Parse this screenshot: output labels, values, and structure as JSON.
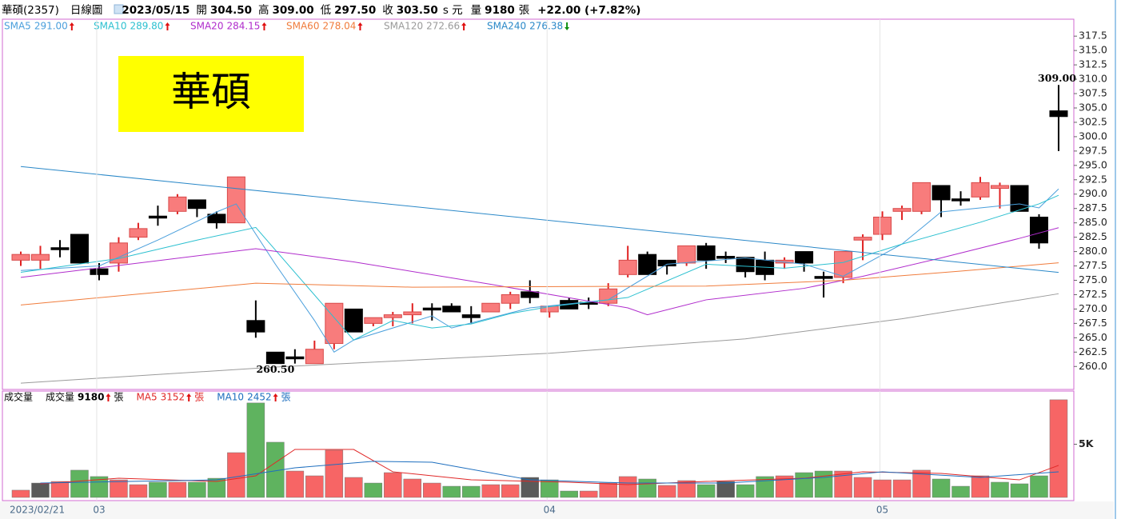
{
  "header": {
    "name": "華碩(2357)",
    "period": "日線圖",
    "date": "2023/05/15",
    "open_label": "開",
    "open": "304.50",
    "high_label": "高",
    "high": "309.00",
    "low_label": "低",
    "low": "297.50",
    "close_label": "收",
    "close": "303.50",
    "currency": "s 元",
    "volume_label": "量",
    "volume": "9180",
    "volume_unit": "張",
    "change": "+22.00 (+7.82%)"
  },
  "banner": "華碩",
  "chart_data": [
    {
      "type": "candlestick",
      "open": [
        278.5,
        278.5,
        280.5,
        283,
        277,
        278,
        282.5,
        286,
        287,
        289,
        286.5,
        285,
        268,
        262.5,
        261.5,
        260.5,
        264,
        270,
        267.5,
        268.5,
        269,
        270,
        270.5,
        269,
        269.5,
        271,
        273,
        269.5,
        271.5,
        271,
        271,
        276,
        279.5,
        278.5,
        278,
        281,
        279,
        279,
        278.5,
        278,
        280,
        275.5,
        275.5,
        282,
        283,
        287,
        287,
        291.5,
        289,
        289.5,
        291,
        291.5,
        286,
        304.5
      ],
      "high": [
        280,
        281,
        282,
        283,
        278,
        282.5,
        285,
        288,
        290,
        289,
        287,
        293,
        271.5,
        262.5,
        263,
        264.5,
        271,
        270,
        268.5,
        269.5,
        271,
        271,
        271,
        270.5,
        271,
        273,
        275,
        270.5,
        272,
        272,
        274.5,
        281,
        280,
        278.5,
        281,
        281.5,
        280,
        279,
        280,
        279,
        280,
        276.5,
        280,
        283,
        287,
        288,
        292,
        291.5,
        290.5,
        293,
        292,
        291.5,
        286.5,
        309
      ],
      "low": [
        277.5,
        277,
        279,
        278,
        275,
        276.5,
        282,
        284.5,
        286.5,
        286,
        284,
        285,
        265,
        260.5,
        260.5,
        260.5,
        263,
        266,
        267,
        267,
        267.5,
        268,
        269.5,
        267.5,
        269.5,
        270,
        271,
        268.5,
        270,
        270,
        270.5,
        275.5,
        276,
        276,
        277.5,
        277,
        278,
        275.5,
        275,
        277,
        276.5,
        272,
        274.5,
        278.5,
        282,
        285.5,
        286.5,
        286,
        288,
        289,
        287.5,
        287,
        280.5,
        297.5
      ],
      "close": [
        279.5,
        279.5,
        280.5,
        278,
        276,
        281.5,
        284,
        286,
        289.5,
        287.5,
        285,
        293,
        266,
        260.5,
        261.5,
        263,
        271,
        266,
        268.5,
        269,
        269.5,
        270,
        269.5,
        268.5,
        271,
        272.5,
        272,
        270.5,
        270,
        271,
        273.5,
        278.5,
        276,
        277.5,
        281,
        278.5,
        279,
        276.5,
        276,
        278.5,
        278,
        275.5,
        280,
        282.5,
        286,
        287.5,
        292,
        289,
        289,
        292,
        291.5,
        287,
        281.5,
        303.5
      ],
      "up_color": "#f87c7c",
      "up_edge": "#e02020",
      "down_color": "#000000",
      "ylim": [
        256,
        320.45
      ],
      "yticks": [
        {
          "value": 260,
          "label": "260.0"
        },
        {
          "value": 262.5,
          "label": "262.5"
        },
        {
          "value": 265,
          "label": "265.0"
        },
        {
          "value": 267.5,
          "label": "267.5"
        },
        {
          "value": 270,
          "label": "270.0"
        },
        {
          "value": 272.5,
          "label": "272.5"
        },
        {
          "value": 275,
          "label": "275.0"
        },
        {
          "value": 277.5,
          "label": "277.5"
        },
        {
          "value": 280,
          "label": "280.0"
        },
        {
          "value": 282.5,
          "label": "282.5"
        },
        {
          "value": 285,
          "label": "285.0"
        },
        {
          "value": 287.5,
          "label": "287.5"
        },
        {
          "value": 290,
          "label": "290.0"
        },
        {
          "value": 292.5,
          "label": "292.5"
        },
        {
          "value": 295,
          "label": "295.0"
        },
        {
          "value": 297.5,
          "label": "297.5"
        },
        {
          "value": 300,
          "label": "300.0"
        },
        {
          "value": 302.5,
          "label": "302.5"
        },
        {
          "value": 305,
          "label": "305.0"
        },
        {
          "value": 307.5,
          "label": "307.5"
        },
        {
          "value": 310,
          "label": "310.0"
        },
        {
          "value": 312.5,
          "label": "312.5"
        },
        {
          "value": 315,
          "label": "315.0"
        },
        {
          "value": 317.5,
          "label": "317.5"
        }
      ],
      "annotations": [
        {
          "x": 53,
          "value": 309,
          "label": "309.00"
        },
        {
          "x": 13,
          "value": 260.5,
          "label": "260.50"
        }
      ],
      "series": [
        {
          "name": "SMA5",
          "color": "#4a9fdc",
          "legend_value": {
            "value": 291,
            "label": "291.00"
          },
          "trend": "up",
          "x": [
            0,
            4,
            7,
            10,
            11,
            13,
            15,
            16,
            17,
            21,
            22,
            26,
            30,
            33,
            37,
            40,
            42,
            45,
            47,
            51,
            52,
            53
          ],
          "values": [
            276.7,
            277.5,
            282,
            286.9,
            288.3,
            277.8,
            268,
            262.5,
            264.6,
            268.8,
            266.7,
            270.2,
            271.6,
            277.8,
            278.9,
            277.8,
            275.7,
            281.3,
            286.9,
            288.3,
            287.6,
            290.9
          ]
        },
        {
          "name": "SMA10",
          "color": "#2cc0d0",
          "legend_value": {
            "value": 289.8,
            "label": "289.80"
          },
          "trend": "up",
          "x": [
            0,
            5,
            9,
            12,
            17,
            19,
            21,
            23,
            25,
            27,
            31,
            35,
            39,
            42,
            45,
            49,
            52,
            53
          ],
          "values": [
            276.4,
            278.8,
            282,
            284.2,
            264.6,
            268,
            266.7,
            267.4,
            269.2,
            270.4,
            272,
            277.8,
            277.1,
            278.1,
            281.3,
            285.1,
            288.3,
            289.8
          ]
        },
        {
          "name": "SMA20",
          "color": "#b02ccc",
          "legend_value": {
            "value": 284.15,
            "label": "284.15"
          },
          "trend": "up",
          "x": [
            0,
            12,
            17,
            24,
            31,
            32,
            35,
            40,
            43,
            47,
            51,
            53
          ],
          "values": [
            275.5,
            280.5,
            278.2,
            274.3,
            270.2,
            269,
            271.6,
            273.6,
            275.7,
            278.9,
            282.3,
            284.15
          ]
        },
        {
          "name": "SMA60",
          "color": "#f07c3c",
          "legend_value": {
            "value": 278.04,
            "label": "278.04"
          },
          "trend": "up",
          "x": [
            0,
            12,
            20,
            35,
            42,
            48,
            53
          ],
          "values": [
            270.7,
            274.5,
            273.8,
            274,
            275,
            276.6,
            278.04
          ]
        },
        {
          "name": "SMA120",
          "color": "#9a9a9a",
          "legend_value": {
            "value": 272.66,
            "label": "272.66"
          },
          "trend": "up",
          "x": [
            0,
            13,
            27,
            37,
            45,
            53
          ],
          "values": [
            257.1,
            259.9,
            262.3,
            264.8,
            268.3,
            272.66
          ]
        },
        {
          "name": "SMA240",
          "color": "#2a88c8",
          "legend_value": {
            "value": 276.38,
            "label": "276.38"
          },
          "trend": "down",
          "x": [
            0,
            53
          ],
          "values": [
            294.8,
            276.38
          ]
        }
      ]
    },
    {
      "type": "bar",
      "title": "成交量",
      "name": "成交量",
      "unit": "張",
      "legend_value": {
        "value": 9180,
        "label": "9180"
      },
      "trend": "up",
      "categories": [
        "2023/02/21",
        null,
        null,
        null,
        "03",
        null,
        null,
        null,
        null,
        null,
        null,
        null,
        null,
        null,
        null,
        null,
        null,
        null,
        null,
        null,
        null,
        null,
        null,
        null,
        null,
        null,
        null,
        "04",
        null,
        null,
        null,
        null,
        null,
        null,
        null,
        null,
        null,
        null,
        null,
        null,
        null,
        null,
        null,
        null,
        "05",
        null,
        null,
        null,
        null,
        null,
        null,
        null,
        null,
        null
      ],
      "values": [
        680,
        1350,
        1500,
        2560,
        1960,
        1650,
        1200,
        1430,
        1430,
        1430,
        1800,
        4210,
        8880,
        5190,
        2480,
        2030,
        4440,
        1880,
        1350,
        2330,
        1730,
        1350,
        1050,
        1050,
        1200,
        1200,
        1880,
        1650,
        600,
        600,
        1350,
        1960,
        1730,
        1130,
        1580,
        1200,
        1500,
        1200,
        1960,
        2030,
        2330,
        2480,
        2480,
        1880,
        1650,
        1650,
        2560,
        1730,
        1050,
        2030,
        1430,
        1280,
        2030,
        9180
      ],
      "colors": [
        "#f76565",
        "#5a5a5a",
        "#f76565",
        "#5fb35f",
        "#5fb35f",
        "#f76565",
        "#f76565",
        "#5fb35f",
        "#f76565",
        "#5fb35f",
        "#5fb35f",
        "#f76565",
        "#5fb35f",
        "#5fb35f",
        "#f76565",
        "#f76565",
        "#f76565",
        "#f76565",
        "#5fb35f",
        "#f76565",
        "#f76565",
        "#f76565",
        "#5fb35f",
        "#5fb35f",
        "#f76565",
        "#f76565",
        "#5a5a5a",
        "#5fb35f",
        "#5fb35f",
        "#f76565",
        "#f76565",
        "#f76565",
        "#5fb35f",
        "#f76565",
        "#f76565",
        "#5fb35f",
        "#5a5a5a",
        "#5fb35f",
        "#5fb35f",
        "#f76565",
        "#5fb35f",
        "#5fb35f",
        "#f76565",
        "#f76565",
        "#f76565",
        "#f76565",
        "#f76565",
        "#5fb35f",
        "#5fb35f",
        "#f76565",
        "#5fb35f",
        "#5fb35f",
        "#5fb35f",
        "#f76565"
      ],
      "ylim": [
        0,
        10000
      ],
      "yticks": [
        {
          "value": 5000,
          "label": "5K"
        }
      ],
      "series": [
        {
          "name": "MA5",
          "color": "#e02828",
          "legend_value": {
            "value": 3152,
            "label": "3152"
          },
          "trend": "up",
          "x": [
            1,
            5,
            10,
            12,
            14,
            17,
            19,
            23,
            28,
            31,
            35,
            40,
            43,
            47,
            51,
            53
          ],
          "values": [
            1280,
            1800,
            1500,
            2030,
            4510,
            4510,
            2410,
            1650,
            1430,
            1200,
            1500,
            1800,
            2410,
            2260,
            1650,
            3010
          ]
        },
        {
          "name": "MA10",
          "color": "#1e6fbf",
          "legend_value": {
            "value": 2452,
            "label": "2452"
          },
          "trend": "up",
          "x": [
            1,
            10,
            14,
            18,
            21,
            26,
            31,
            36,
            41,
            44,
            49,
            53
          ],
          "values": [
            1350,
            1650,
            2780,
            3390,
            3310,
            1650,
            1350,
            1350,
            1880,
            2410,
            1880,
            2410
          ]
        }
      ]
    }
  ]
}
